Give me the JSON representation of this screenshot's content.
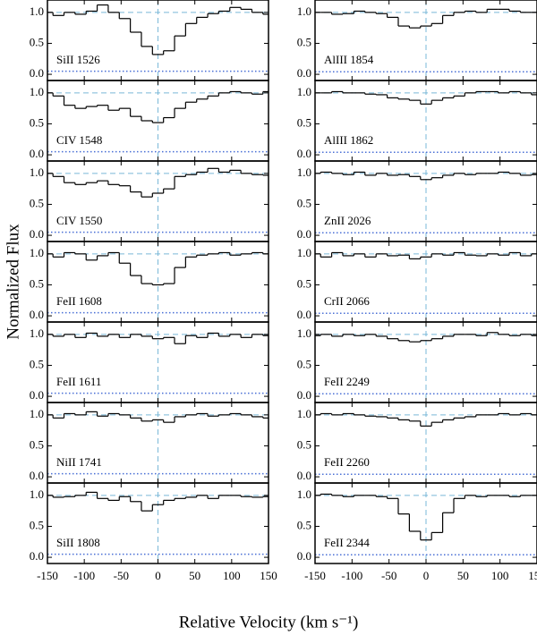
{
  "chart_data": {
    "type": "step",
    "xlabel": "Relative Velocity  (km s⁻¹)",
    "ylabel": "Normalized Flux",
    "x": [
      -150,
      -135,
      -120,
      -105,
      -90,
      -75,
      -60,
      -45,
      -30,
      -15,
      0,
      15,
      30,
      45,
      60,
      75,
      90,
      105,
      120,
      135,
      150
    ],
    "xlim": [
      -150,
      150
    ],
    "ylim": [
      -0.1,
      1.2
    ],
    "xticks": [
      -150,
      -100,
      -50,
      0,
      50,
      100,
      150
    ],
    "yticks": [
      {
        "value": 0,
        "label": "0.0"
      },
      {
        "value": 0.5,
        "label": "0.5"
      },
      {
        "value": 1,
        "label": "1.0"
      }
    ],
    "continuum": 1,
    "reference_velocity": 0,
    "flux_color": "#000000",
    "error_color": "#4a6fd6",
    "reference_color": "#7ab8d8",
    "series": [
      {
        "name": "SiII 1526",
        "values": [
          1.0,
          0.95,
          1.0,
          0.97,
          1.02,
          1.12,
          1.0,
          0.9,
          0.68,
          0.45,
          0.32,
          0.38,
          0.62,
          0.82,
          0.92,
          0.98,
          1.02,
          1.08,
          1.05,
          1.0,
          0.97
        ],
        "error": [
          0.05,
          0.05,
          0.05,
          0.05,
          0.05,
          0.05,
          0.05,
          0.05,
          0.05,
          0.05,
          0.05,
          0.05,
          0.05,
          0.05,
          0.05,
          0.05,
          0.05,
          0.05,
          0.05,
          0.05,
          0.05
        ]
      },
      {
        "name": "CIV 1548",
        "values": [
          1.0,
          0.95,
          0.8,
          0.75,
          0.78,
          0.8,
          0.72,
          0.75,
          0.62,
          0.55,
          0.52,
          0.6,
          0.75,
          0.85,
          0.9,
          0.95,
          1.0,
          1.02,
          1.0,
          0.98,
          1.02
        ],
        "error": [
          0.05,
          0.05,
          0.05,
          0.05,
          0.05,
          0.05,
          0.05,
          0.05,
          0.05,
          0.05,
          0.05,
          0.05,
          0.05,
          0.05,
          0.05,
          0.05,
          0.05,
          0.05,
          0.05,
          0.05,
          0.05
        ]
      },
      {
        "name": "CIV 1550",
        "values": [
          1.0,
          0.95,
          0.85,
          0.82,
          0.85,
          0.88,
          0.82,
          0.8,
          0.7,
          0.62,
          0.68,
          0.75,
          0.95,
          0.98,
          1.02,
          1.08,
          1.02,
          1.05,
          1.0,
          0.98,
          0.97
        ],
        "error": [
          0.05,
          0.05,
          0.05,
          0.05,
          0.05,
          0.05,
          0.05,
          0.05,
          0.05,
          0.05,
          0.05,
          0.05,
          0.05,
          0.05,
          0.05,
          0.05,
          0.05,
          0.05,
          0.05,
          0.05,
          0.05
        ]
      },
      {
        "name": "FeII 1608",
        "values": [
          1.0,
          0.95,
          1.02,
          1.0,
          0.9,
          0.97,
          1.02,
          0.85,
          0.65,
          0.52,
          0.5,
          0.52,
          0.78,
          0.95,
          0.98,
          1.0,
          1.02,
          0.98,
          1.0,
          1.02,
          1.0
        ],
        "error": [
          0.05,
          0.05,
          0.05,
          0.05,
          0.05,
          0.05,
          0.05,
          0.05,
          0.05,
          0.05,
          0.05,
          0.05,
          0.05,
          0.05,
          0.05,
          0.05,
          0.05,
          0.05,
          0.05,
          0.05,
          0.05
        ]
      },
      {
        "name": "FeII 1611",
        "values": [
          1.0,
          0.97,
          1.0,
          0.95,
          1.02,
          0.97,
          1.0,
          0.95,
          1.0,
          0.97,
          0.93,
          0.95,
          0.85,
          0.98,
          0.95,
          1.02,
          0.97,
          1.0,
          0.95,
          1.0,
          0.98
        ],
        "error": [
          0.05,
          0.05,
          0.05,
          0.05,
          0.05,
          0.05,
          0.05,
          0.05,
          0.05,
          0.05,
          0.05,
          0.05,
          0.05,
          0.05,
          0.05,
          0.05,
          0.05,
          0.05,
          0.05,
          0.05,
          0.05
        ]
      },
      {
        "name": "NiII 1741",
        "values": [
          1.0,
          0.95,
          1.02,
          1.0,
          1.05,
          0.98,
          1.02,
          1.0,
          0.95,
          0.9,
          0.92,
          0.88,
          0.97,
          1.0,
          1.02,
          0.98,
          1.0,
          1.02,
          1.0,
          0.97,
          0.95
        ],
        "error": [
          0.05,
          0.05,
          0.05,
          0.05,
          0.05,
          0.05,
          0.05,
          0.05,
          0.05,
          0.05,
          0.05,
          0.05,
          0.05,
          0.05,
          0.05,
          0.05,
          0.05,
          0.05,
          0.05,
          0.05,
          0.05
        ]
      },
      {
        "name": "SiII 1808",
        "values": [
          1.0,
          0.97,
          0.98,
          1.0,
          1.05,
          0.95,
          0.92,
          0.98,
          0.9,
          0.75,
          0.85,
          0.92,
          0.95,
          0.97,
          1.0,
          0.95,
          1.0,
          1.0,
          0.98,
          0.97,
          0.98
        ],
        "error": [
          0.05,
          0.05,
          0.05,
          0.05,
          0.05,
          0.05,
          0.05,
          0.05,
          0.05,
          0.05,
          0.05,
          0.05,
          0.05,
          0.05,
          0.05,
          0.05,
          0.05,
          0.05,
          0.05,
          0.05,
          0.05
        ]
      },
      {
        "name": "AlIII 1854",
        "values": [
          1.0,
          1.0,
          0.97,
          0.98,
          1.02,
          1.0,
          0.98,
          0.92,
          0.78,
          0.75,
          0.78,
          0.82,
          0.95,
          1.0,
          1.02,
          1.0,
          1.05,
          1.05,
          1.02,
          1.0,
          1.0
        ],
        "error": [
          0.04,
          0.04,
          0.04,
          0.04,
          0.04,
          0.04,
          0.04,
          0.04,
          0.04,
          0.04,
          0.04,
          0.04,
          0.04,
          0.04,
          0.04,
          0.04,
          0.04,
          0.04,
          0.04,
          0.04,
          0.04
        ]
      },
      {
        "name": "AlIII 1862",
        "values": [
          1.0,
          1.0,
          1.02,
          1.0,
          1.0,
          0.98,
          0.97,
          0.92,
          0.9,
          0.88,
          0.82,
          0.88,
          0.92,
          0.95,
          1.0,
          1.02,
          1.02,
          1.0,
          1.02,
          1.0,
          0.97
        ],
        "error": [
          0.04,
          0.04,
          0.04,
          0.04,
          0.04,
          0.04,
          0.04,
          0.04,
          0.04,
          0.04,
          0.04,
          0.04,
          0.04,
          0.04,
          0.04,
          0.04,
          0.04,
          0.04,
          0.04,
          0.04,
          0.04
        ]
      },
      {
        "name": "ZnII 2026",
        "values": [
          1.0,
          1.02,
          1.0,
          0.98,
          1.02,
          0.97,
          1.0,
          0.97,
          0.98,
          0.95,
          0.9,
          0.93,
          0.97,
          1.0,
          0.98,
          1.0,
          1.0,
          1.02,
          1.0,
          0.97,
          0.98
        ],
        "error": [
          0.04,
          0.04,
          0.04,
          0.04,
          0.04,
          0.04,
          0.04,
          0.04,
          0.04,
          0.04,
          0.04,
          0.04,
          0.04,
          0.04,
          0.04,
          0.04,
          0.04,
          0.04,
          0.04,
          0.04,
          0.04
        ]
      },
      {
        "name": "CrII 2066",
        "values": [
          1.0,
          0.95,
          1.02,
          0.97,
          1.0,
          0.95,
          1.0,
          0.97,
          0.98,
          0.92,
          0.95,
          1.0,
          0.98,
          1.02,
          0.98,
          0.97,
          1.0,
          0.98,
          1.02,
          0.97,
          1.0
        ],
        "error": [
          0.04,
          0.04,
          0.04,
          0.04,
          0.04,
          0.04,
          0.04,
          0.04,
          0.04,
          0.04,
          0.04,
          0.04,
          0.04,
          0.04,
          0.04,
          0.04,
          0.04,
          0.04,
          0.04,
          0.04,
          0.04
        ]
      },
      {
        "name": "FeII 2249",
        "values": [
          0.98,
          1.0,
          0.97,
          1.0,
          0.98,
          1.0,
          0.97,
          0.93,
          0.9,
          0.88,
          0.9,
          0.93,
          0.97,
          1.0,
          1.0,
          0.98,
          1.03,
          1.0,
          0.98,
          1.0,
          0.98
        ],
        "error": [
          0.04,
          0.04,
          0.04,
          0.04,
          0.04,
          0.04,
          0.04,
          0.04,
          0.04,
          0.04,
          0.04,
          0.04,
          0.04,
          0.04,
          0.04,
          0.04,
          0.04,
          0.04,
          0.04,
          0.04,
          0.04
        ]
      },
      {
        "name": "FeII 2260",
        "values": [
          1.0,
          1.02,
          1.0,
          1.02,
          1.0,
          0.98,
          0.97,
          0.95,
          0.92,
          0.9,
          0.82,
          0.88,
          0.92,
          0.95,
          0.97,
          1.0,
          1.0,
          1.02,
          1.0,
          1.02,
          1.0
        ],
        "error": [
          0.04,
          0.04,
          0.04,
          0.04,
          0.04,
          0.04,
          0.04,
          0.04,
          0.04,
          0.04,
          0.04,
          0.04,
          0.04,
          0.04,
          0.04,
          0.04,
          0.04,
          0.04,
          0.04,
          0.04,
          0.04
        ]
      },
      {
        "name": "FeII 2344",
        "values": [
          1.0,
          1.02,
          1.0,
          0.98,
          1.0,
          1.0,
          0.98,
          0.95,
          0.7,
          0.42,
          0.28,
          0.4,
          0.72,
          0.95,
          1.0,
          0.98,
          1.0,
          1.0,
          0.98,
          1.0,
          1.0
        ],
        "error": [
          0.04,
          0.04,
          0.04,
          0.04,
          0.04,
          0.04,
          0.04,
          0.04,
          0.04,
          0.04,
          0.04,
          0.04,
          0.04,
          0.04,
          0.04,
          0.04,
          0.04,
          0.04,
          0.04,
          0.04,
          0.04
        ]
      }
    ]
  }
}
